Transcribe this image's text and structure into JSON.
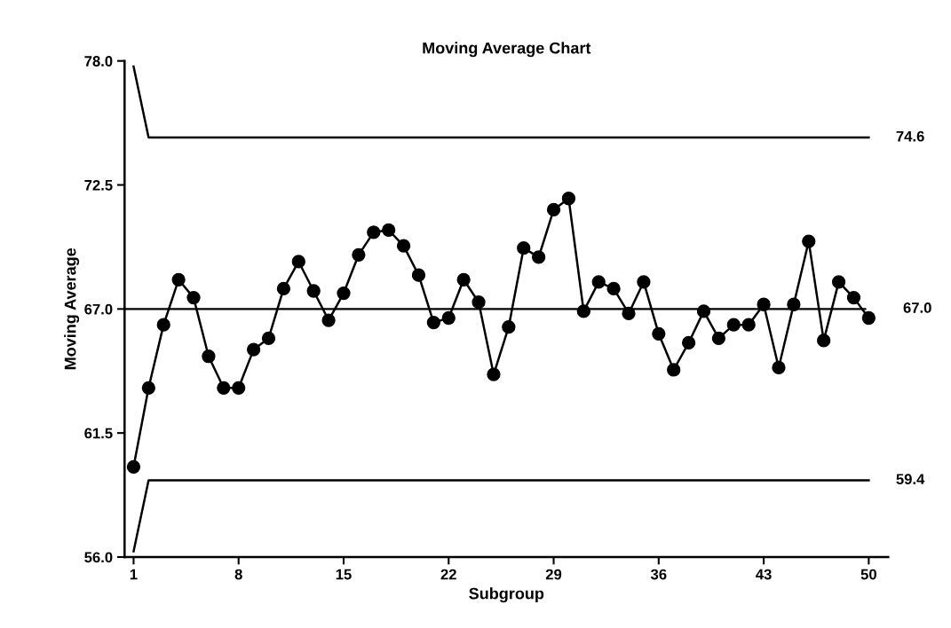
{
  "chart_data": {
    "type": "line",
    "title": "Moving Average Chart",
    "xlabel": "Subgroup",
    "ylabel": "Moving Average",
    "x": [
      1,
      2,
      3,
      4,
      5,
      6,
      7,
      8,
      9,
      10,
      11,
      12,
      13,
      14,
      15,
      16,
      17,
      18,
      19,
      20,
      21,
      22,
      23,
      24,
      25,
      26,
      27,
      28,
      29,
      30,
      31,
      32,
      33,
      34,
      35,
      36,
      37,
      38,
      39,
      40,
      41,
      42,
      43,
      44,
      45,
      46,
      47,
      48,
      49,
      50
    ],
    "series": [
      {
        "color": "#000000",
        "values": [
          60.0,
          63.5,
          66.3,
          68.3,
          67.5,
          64.9,
          63.5,
          63.5,
          65.2,
          65.7,
          67.9,
          69.1,
          67.8,
          66.5,
          67.7,
          69.4,
          70.4,
          70.5,
          69.8,
          68.5,
          66.4,
          66.6,
          68.3,
          67.3,
          64.1,
          66.2,
          69.7,
          69.3,
          71.4,
          71.9,
          66.9,
          68.2,
          67.9,
          66.8,
          68.2,
          65.9,
          64.3,
          65.5,
          66.9,
          65.7,
          66.3,
          66.3,
          67.2,
          64.4,
          67.2,
          70.0,
          65.6,
          68.2,
          67.5,
          66.6
        ]
      },
      {
        "color": "#000000",
        "marker": "none",
        "x": [
          1,
          2,
          50
        ],
        "values": [
          77.75,
          74.6,
          74.6
        ]
      },
      {
        "color": "#000000",
        "marker": "none",
        "x": [
          1,
          2,
          50
        ],
        "values": [
          56.25,
          59.4,
          59.4
        ]
      }
    ],
    "ref_lines": [
      {
        "axis": "y",
        "value": 67.0,
        "label": "67.0",
        "color": "#000000"
      }
    ],
    "annotations": [
      {
        "text": "74.6",
        "x": 50,
        "y": 74.6
      },
      {
        "text": "59.4",
        "x": 50,
        "y": 59.4
      }
    ],
    "xlim": [
      0.4,
      51.3
    ],
    "xticks": [
      1,
      8,
      15,
      22,
      29,
      36,
      43,
      50
    ],
    "ylim": [
      56.0,
      78.0
    ],
    "yticks": [
      {
        "value": 56.0,
        "label": "56.0"
      },
      {
        "value": 61.5,
        "label": "61.5"
      },
      {
        "value": 67.0,
        "label": "67.0"
      },
      {
        "value": 72.5,
        "label": "72.5"
      },
      {
        "value": 78.0,
        "label": "78.0"
      }
    ],
    "grid": false,
    "marker": "circle",
    "line_style": "solid"
  }
}
